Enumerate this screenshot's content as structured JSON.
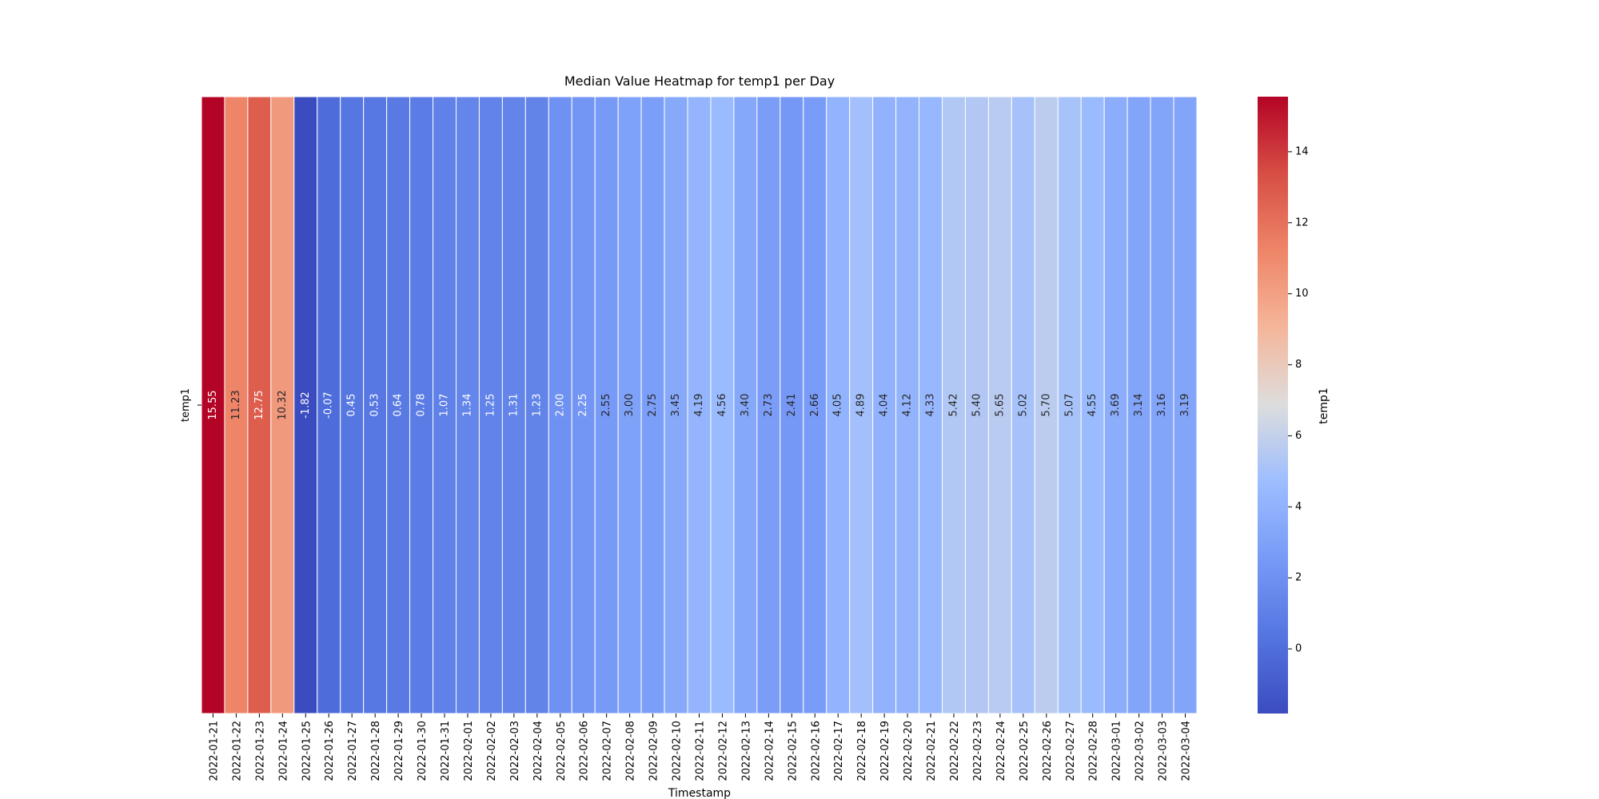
{
  "chart_data": {
    "type": "heatmap",
    "title": "Median Value Heatmap for temp1 per Day",
    "xlabel": "Timestamp",
    "ylabel": "",
    "row_labels": [
      "temp1"
    ],
    "colorbar": {
      "label": "temp1",
      "colormap": "coolwarm",
      "vmin": -1.82,
      "vmax": 15.55,
      "ticks": [
        0,
        2,
        4,
        6,
        8,
        10,
        12,
        14
      ]
    },
    "columns": [
      "2022-01-21",
      "2022-01-22",
      "2022-01-23",
      "2022-01-24",
      "2022-01-25",
      "2022-01-26",
      "2022-01-27",
      "2022-01-28",
      "2022-01-29",
      "2022-01-30",
      "2022-01-31",
      "2022-02-01",
      "2022-02-02",
      "2022-02-03",
      "2022-02-04",
      "2022-02-05",
      "2022-02-06",
      "2022-02-07",
      "2022-02-08",
      "2022-02-09",
      "2022-02-10",
      "2022-02-11",
      "2022-02-12",
      "2022-02-13",
      "2022-02-14",
      "2022-02-15",
      "2022-02-16",
      "2022-02-17",
      "2022-02-18",
      "2022-02-19",
      "2022-02-20",
      "2022-02-21",
      "2022-02-22",
      "2022-02-23",
      "2022-02-24",
      "2022-02-25",
      "2022-02-26",
      "2022-02-27",
      "2022-02-28",
      "2022-03-01",
      "2022-03-02",
      "2022-03-03",
      "2022-03-04"
    ],
    "values": [
      [
        "15.55",
        "11.23",
        "12.75",
        "10.32",
        "-1.82",
        "-0.07",
        "0.45",
        "0.53",
        "0.64",
        "0.78",
        "1.07",
        "1.34",
        "1.25",
        "1.31",
        "1.23",
        "2.00",
        "2.25",
        "2.55",
        "3.00",
        "2.75",
        "3.45",
        "4.19",
        "4.56",
        "3.40",
        "2.73",
        "2.41",
        "2.66",
        "4.05",
        "4.89",
        "4.04",
        "4.12",
        "4.33",
        "5.42",
        "5.40",
        "5.65",
        "5.02",
        "5.70",
        "5.07",
        "4.55",
        "3.69",
        "3.14",
        "3.16",
        "3.19"
      ]
    ]
  }
}
